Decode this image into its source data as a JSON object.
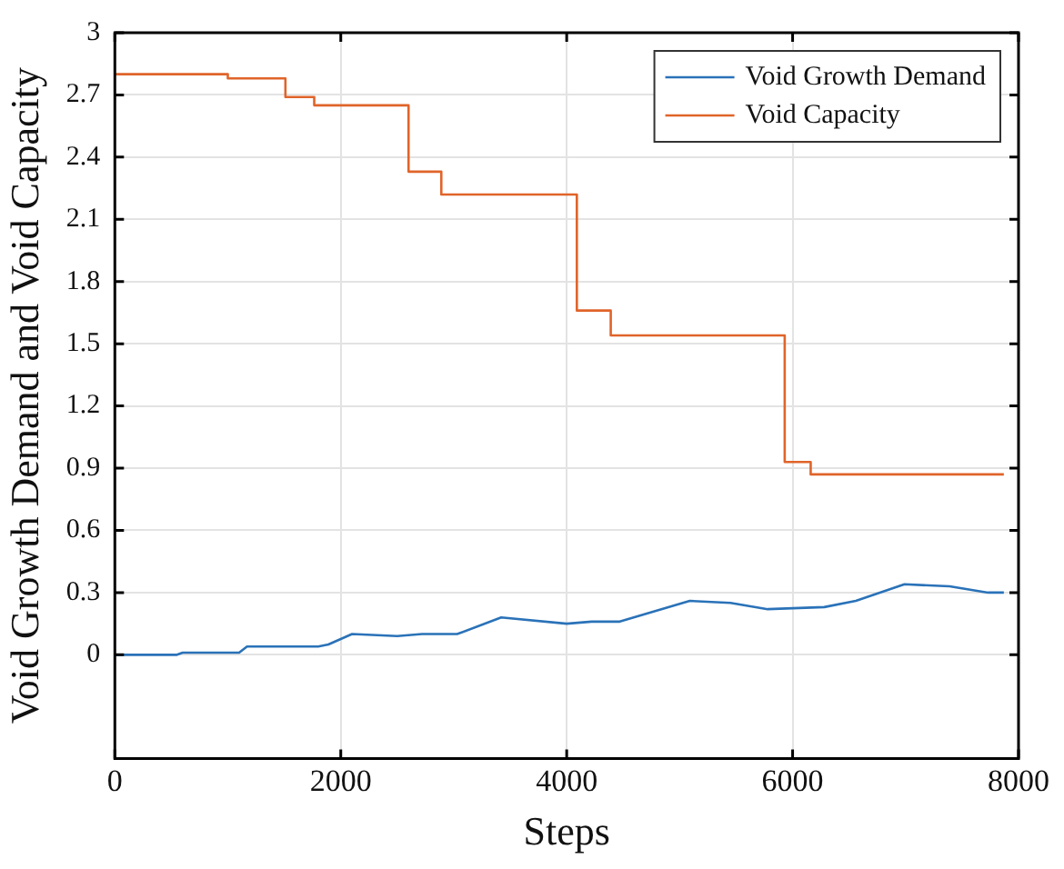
{
  "chart_data": {
    "type": "step",
    "xlabel": "Steps",
    "ylabel": "Void Growth Demand and Void Capacity",
    "xlim": [
      0,
      8000
    ],
    "xticks": [
      0,
      2000,
      4000,
      6000,
      8000
    ],
    "ylim": [
      -0.5,
      3
    ],
    "yticks": [
      0,
      0.3,
      0.6,
      0.9,
      1.2,
      1.5,
      1.8,
      2.1,
      2.4,
      2.7,
      3
    ],
    "grid": true,
    "legend": "top right",
    "series": [
      {
        "name": "Void Growth Demand",
        "type": "line",
        "color": "#2a72b8",
        "x": [
          0,
          550,
          600,
          1100,
          1170,
          1800,
          1890,
          2100,
          2500,
          2720,
          3030,
          3420,
          4000,
          4220,
          4470,
          5090,
          5450,
          5780,
          6280,
          6560,
          6990,
          7390,
          7730,
          7870
        ],
        "values": [
          0,
          0,
          0.01,
          0.01,
          0.04,
          0.04,
          0.05,
          0.1,
          0.09,
          0.1,
          0.1,
          0.18,
          0.15,
          0.16,
          0.16,
          0.26,
          0.25,
          0.22,
          0.23,
          0.26,
          0.34,
          0.33,
          0.3,
          0.3
        ]
      },
      {
        "name": "Void Capacity",
        "color": "#e0642a",
        "x": [
          0,
          1000,
          1510,
          1765,
          2600,
          2890,
          4090,
          4390,
          5930,
          6160,
          7870
        ],
        "values": [
          2.8,
          2.78,
          2.69,
          2.65,
          2.33,
          2.22,
          1.66,
          1.54,
          0.93,
          0.87,
          0.87
        ]
      }
    ]
  }
}
